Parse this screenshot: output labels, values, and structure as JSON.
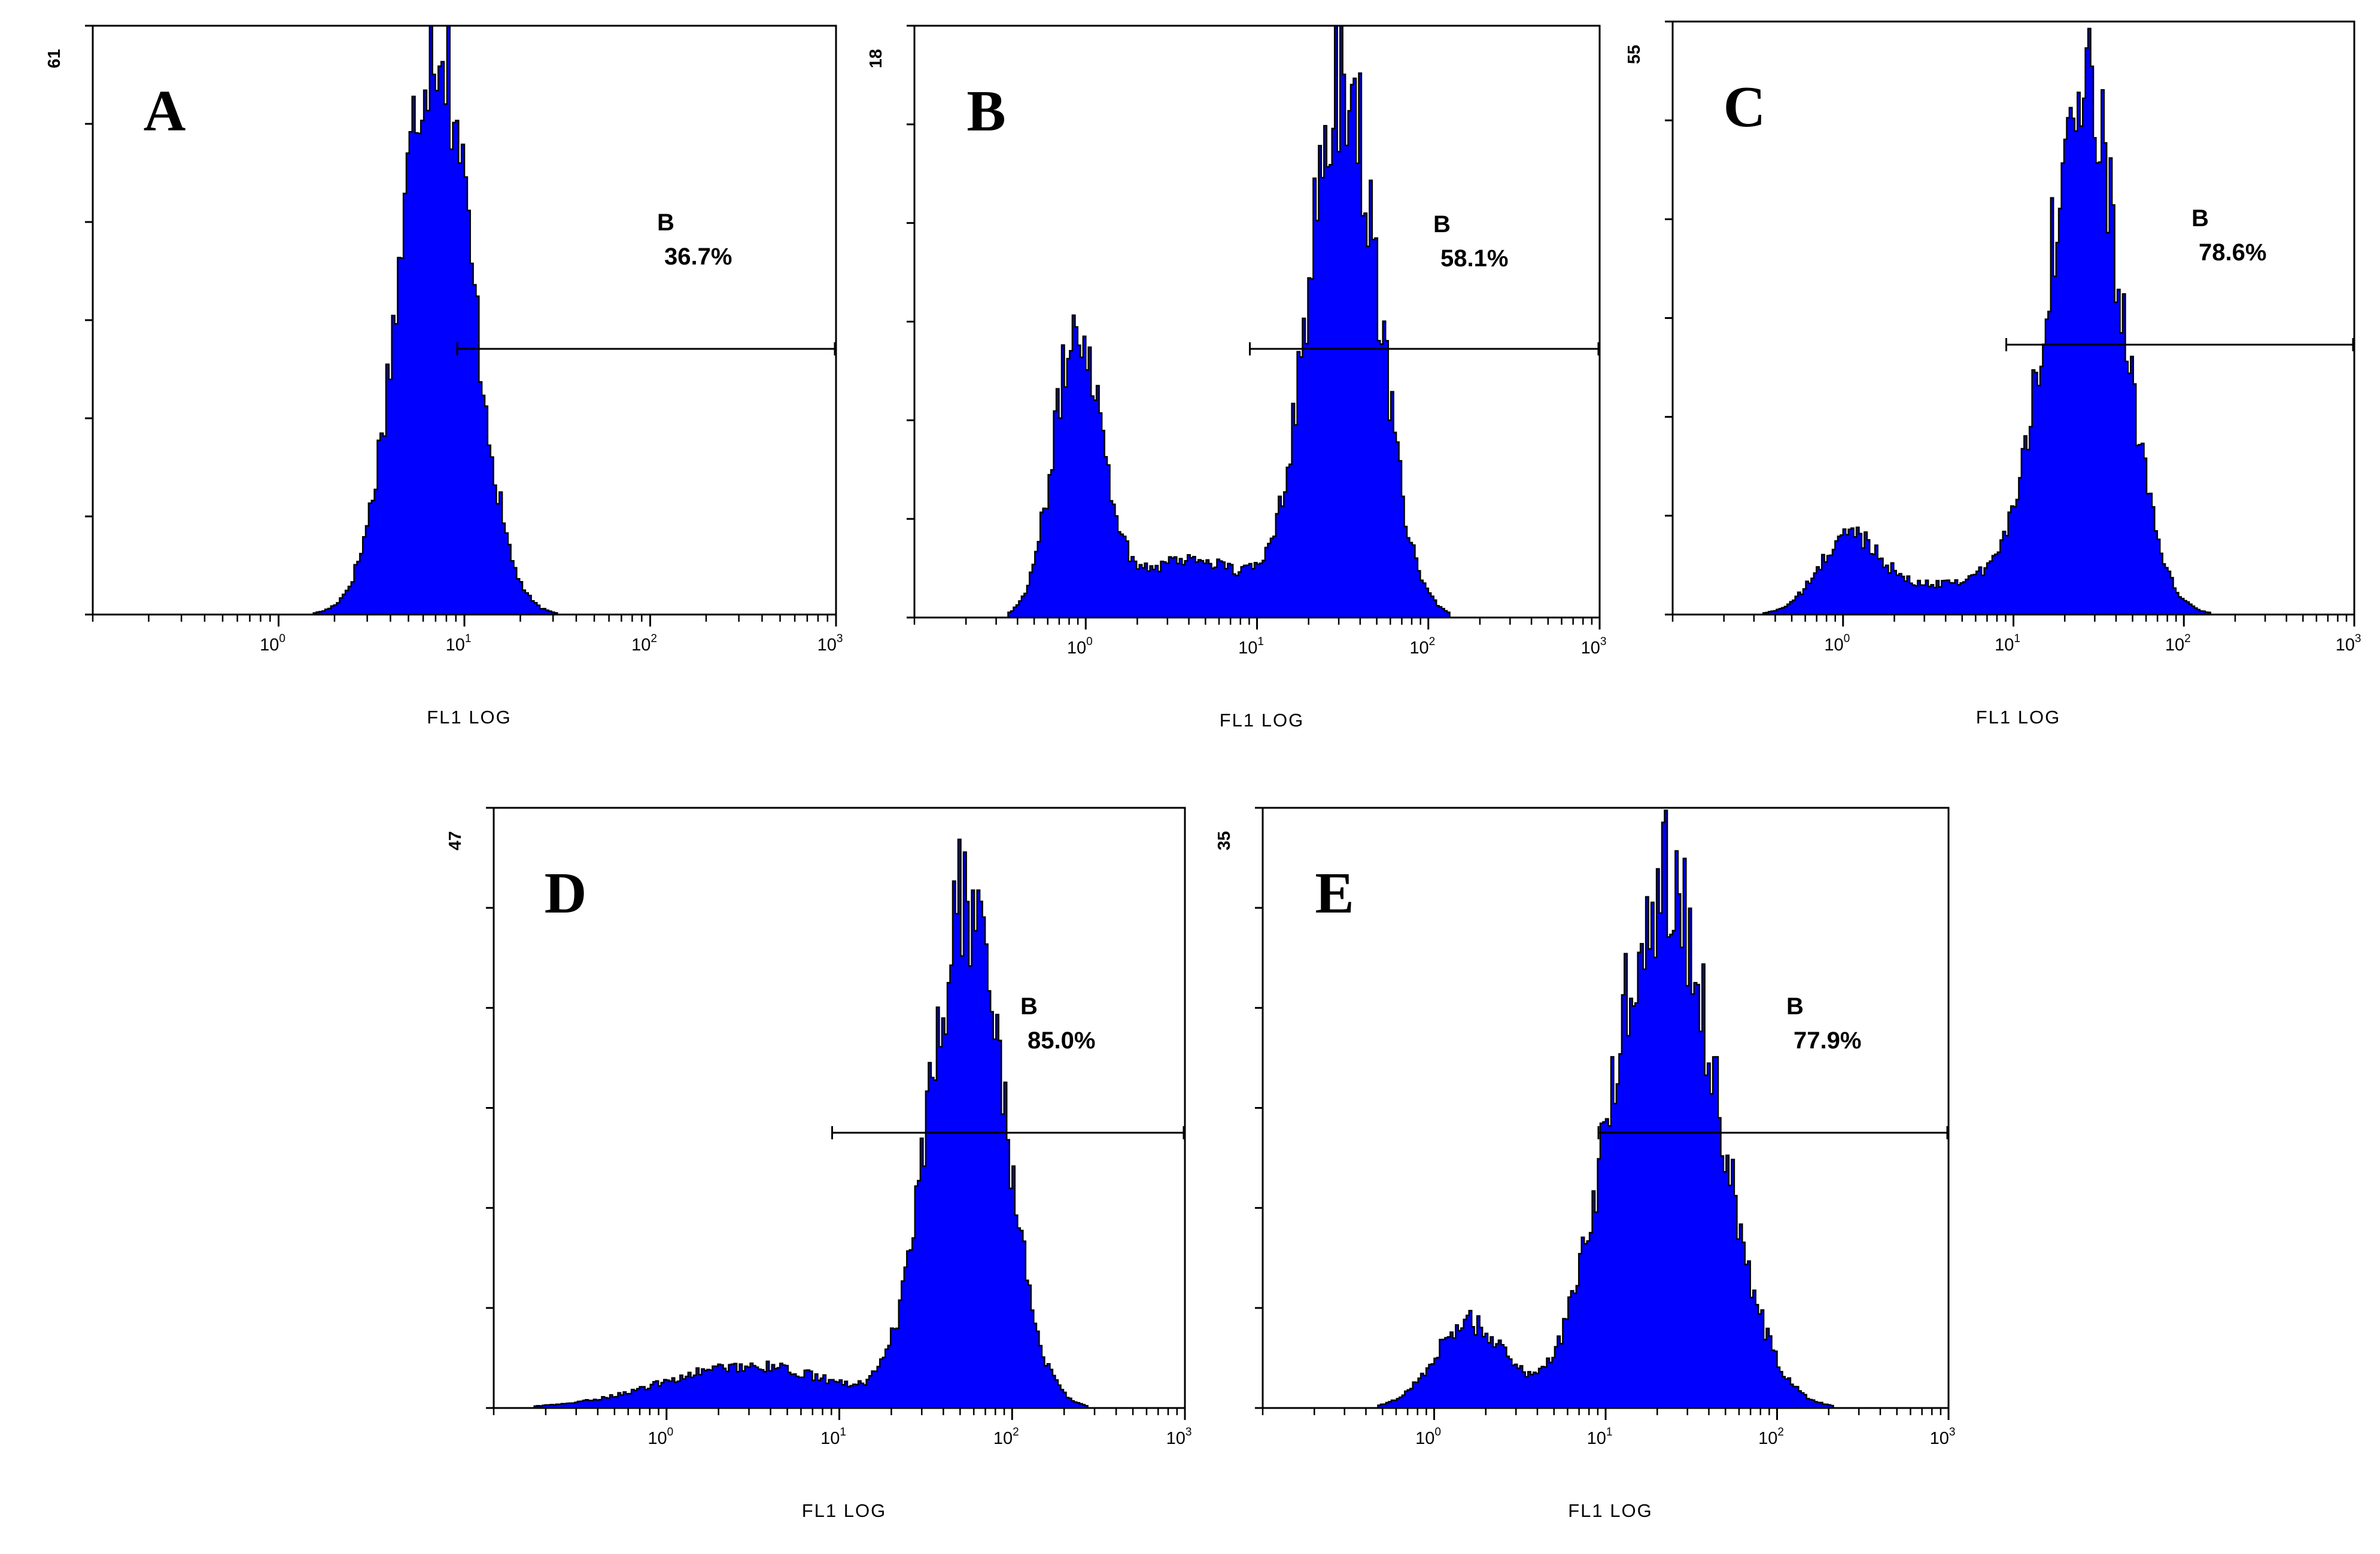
{
  "chart_data": [
    {
      "type": "histogram",
      "panel": "A",
      "xlabel": "FL1 LOG",
      "x_scale": "log",
      "xlim": [
        0.1,
        1000
      ],
      "x_ticks": [
        {
          "base": "10",
          "exp": "0"
        },
        {
          "base": "10",
          "exp": "1"
        },
        {
          "base": "10",
          "exp": "2"
        },
        {
          "base": "10",
          "exp": "3"
        }
      ],
      "ylim": [
        0,
        61
      ],
      "y_max_label": "61",
      "gate": {
        "label": "B",
        "percent": "36.7%",
        "from": 10,
        "to": 1000
      },
      "fill_color": "#0000ff",
      "components": [
        {
          "center": 7,
          "sigma": 0.19,
          "height": 61
        }
      ]
    },
    {
      "type": "histogram",
      "panel": "B",
      "xlabel": "FL1 LOG",
      "x_scale": "log",
      "xlim": [
        0.1,
        1000
      ],
      "x_ticks": [
        {
          "base": "10",
          "exp": "0"
        },
        {
          "base": "10",
          "exp": "1"
        },
        {
          "base": "10",
          "exp": "2"
        },
        {
          "base": "10",
          "exp": "3"
        }
      ],
      "ylim": [
        0,
        18
      ],
      "y_max_label": "18",
      "gate": {
        "label": "B",
        "percent": "58.1%",
        "from": 10,
        "to": 1000
      },
      "fill_color": "#0000ff",
      "components": [
        {
          "center": 0.9,
          "sigma": 0.14,
          "height": 8.6
        },
        {
          "center": 32,
          "sigma": 0.2,
          "height": 16.5
        },
        {
          "center": 4,
          "sigma": 0.35,
          "height": 1.8
        }
      ]
    },
    {
      "type": "histogram",
      "panel": "C",
      "xlabel": "FL1 LOG",
      "x_scale": "log",
      "xlim": [
        0.1,
        1000
      ],
      "x_ticks": [
        {
          "base": "10",
          "exp": "0"
        },
        {
          "base": "10",
          "exp": "1"
        },
        {
          "base": "10",
          "exp": "2"
        },
        {
          "base": "10",
          "exp": "3"
        }
      ],
      "ylim": [
        0,
        55
      ],
      "y_max_label": "55",
      "gate": {
        "label": "B",
        "percent": "78.6%",
        "from": 10,
        "to": 1000
      },
      "fill_color": "#0000ff",
      "components": [
        {
          "center": 1.1,
          "sigma": 0.18,
          "height": 7
        },
        {
          "center": 26,
          "sigma": 0.22,
          "height": 48
        },
        {
          "center": 5,
          "sigma": 0.35,
          "height": 3
        }
      ]
    },
    {
      "type": "histogram",
      "panel": "D",
      "xlabel": "FL1 LOG",
      "x_scale": "log",
      "xlim": [
        0.1,
        1000
      ],
      "x_ticks": [
        {
          "base": "10",
          "exp": "0"
        },
        {
          "base": "10",
          "exp": "1"
        },
        {
          "base": "10",
          "exp": "2"
        },
        {
          "base": "10",
          "exp": "3"
        }
      ],
      "ylim": [
        0,
        47
      ],
      "y_max_label": "47",
      "gate": {
        "label": "B",
        "percent": "85.0%",
        "from": 10,
        "to": 1000
      },
      "fill_color": "#0000ff",
      "components": [
        {
          "center": 55,
          "sigma": 0.21,
          "height": 40
        },
        {
          "center": 3,
          "sigma": 0.5,
          "height": 3.3
        }
      ]
    },
    {
      "type": "histogram",
      "panel": "E",
      "xlabel": "FL1 LOG",
      "x_scale": "log",
      "xlim": [
        0.1,
        1000
      ],
      "x_ticks": [
        {
          "base": "10",
          "exp": "0"
        },
        {
          "base": "10",
          "exp": "1"
        },
        {
          "base": "10",
          "exp": "2"
        },
        {
          "base": "10",
          "exp": "3"
        }
      ],
      "ylim": [
        0,
        35
      ],
      "y_max_label": "35",
      "gate": {
        "label": "B",
        "percent": "77.9%",
        "from": 10,
        "to": 1000
      },
      "fill_color": "#0000ff",
      "components": [
        {
          "center": 22,
          "sigma": 0.3,
          "height": 31
        },
        {
          "center": 1.6,
          "sigma": 0.2,
          "height": 5
        }
      ]
    }
  ]
}
